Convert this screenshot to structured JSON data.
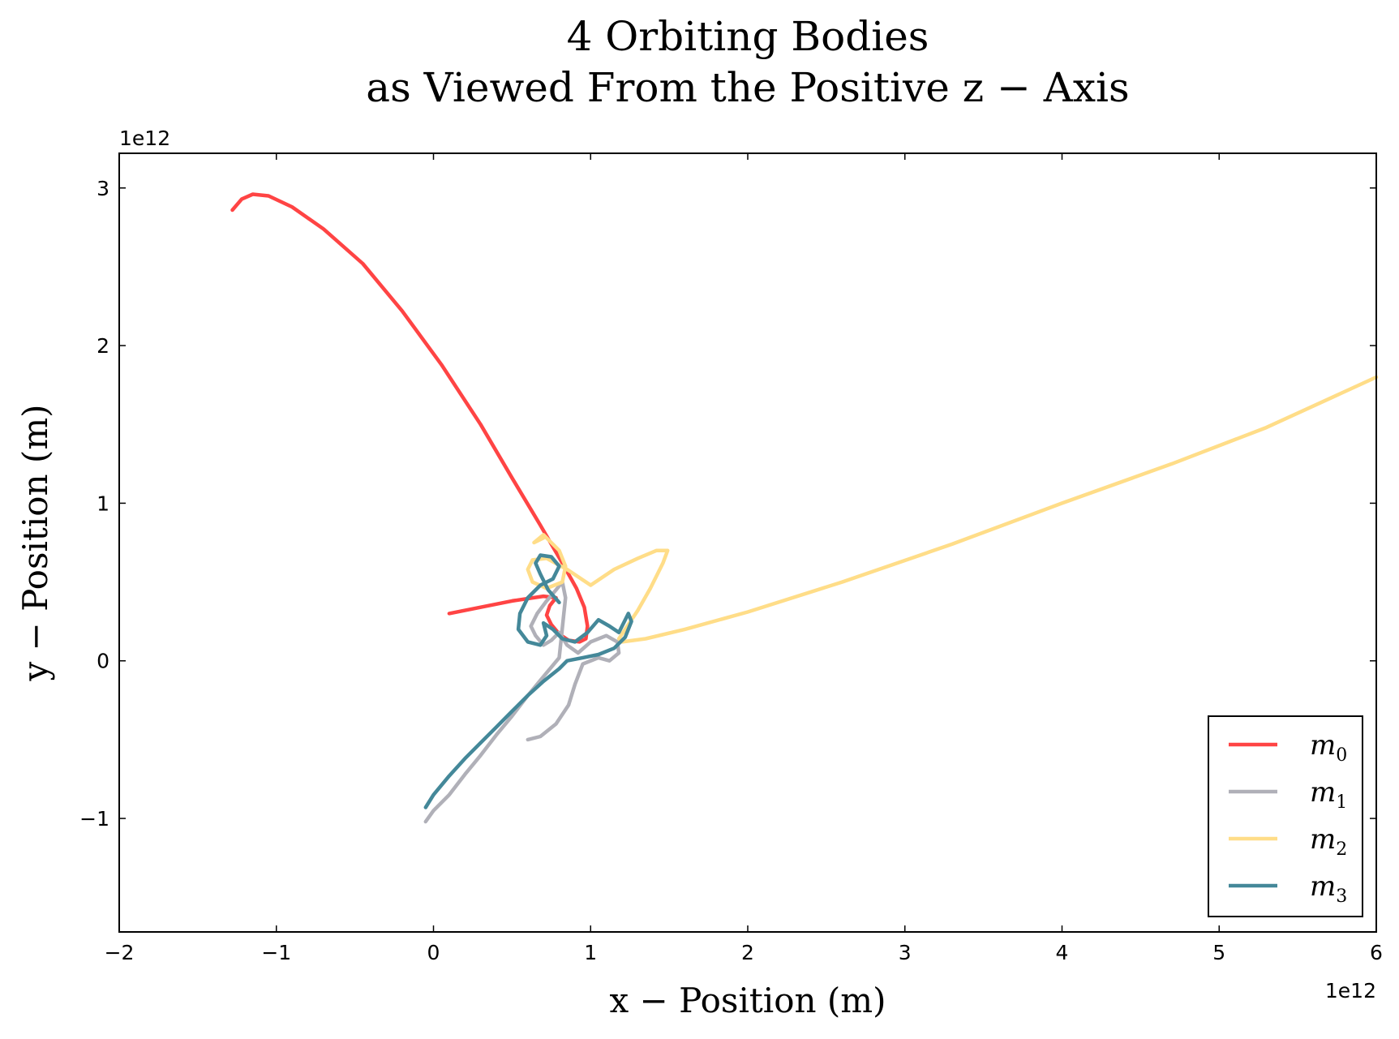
{
  "chart_data": {
    "type": "line",
    "title": [
      "4 Orbiting Bodies",
      "as Viewed From the Positive z − Axis"
    ],
    "xlabel": "x − Position (m)",
    "ylabel": "y − Position (m)",
    "x_offset_label": "1e12",
    "y_offset_label": "1e12",
    "xlim": [
      -2,
      6
    ],
    "ylim": [
      -1.72,
      3.22
    ],
    "xticks": [
      -2,
      -1,
      0,
      1,
      2,
      3,
      4,
      5,
      6
    ],
    "yticks": [
      -1,
      0,
      1,
      2,
      3
    ],
    "xtick_labels": [
      "−2",
      "−1",
      "0",
      "1",
      "2",
      "3",
      "4",
      "5",
      "6"
    ],
    "ytick_labels": [
      "−1",
      "0",
      "1",
      "2",
      "3"
    ],
    "grid": false,
    "legend_position": "bottom-right",
    "series": [
      {
        "name": "m",
        "subscript": "0",
        "color": "#ff4444",
        "x": [
          -1.28,
          -1.22,
          -1.15,
          -1.05,
          -0.9,
          -0.7,
          -0.45,
          -0.2,
          0.05,
          0.3,
          0.5,
          0.68,
          0.82,
          0.91,
          0.96,
          0.98,
          0.97,
          0.93,
          0.86,
          0.8,
          0.75,
          0.72,
          0.74,
          0.78,
          0.7,
          0.5,
          0.3,
          0.1
        ],
        "y": [
          2.86,
          2.93,
          2.96,
          2.95,
          2.88,
          2.74,
          2.52,
          2.22,
          1.88,
          1.5,
          1.16,
          0.86,
          0.62,
          0.46,
          0.34,
          0.22,
          0.14,
          0.12,
          0.13,
          0.17,
          0.23,
          0.29,
          0.35,
          0.4,
          0.41,
          0.38,
          0.34,
          0.3
        ]
      },
      {
        "name": "m",
        "subscript": "1",
        "color": "#b0b0b8",
        "x": [
          0.6,
          0.68,
          0.78,
          0.86,
          0.9,
          0.95,
          1.05,
          1.12,
          1.18,
          1.17,
          1.1,
          1.0,
          0.92,
          0.85,
          0.8,
          0.75,
          0.7,
          0.65,
          0.62,
          0.66,
          0.72,
          0.78,
          0.82,
          0.84,
          0.8,
          0.7,
          0.6,
          0.5,
          0.4,
          0.3,
          0.2,
          0.1,
          0.0,
          -0.05
        ],
        "y": [
          -0.5,
          -0.48,
          -0.4,
          -0.28,
          -0.15,
          -0.02,
          0.02,
          0.0,
          0.05,
          0.12,
          0.16,
          0.12,
          0.05,
          0.1,
          0.18,
          0.13,
          0.1,
          0.16,
          0.22,
          0.3,
          0.38,
          0.45,
          0.5,
          0.4,
          0.02,
          -0.1,
          -0.22,
          -0.35,
          -0.47,
          -0.6,
          -0.72,
          -0.85,
          -0.95,
          -1.02
        ]
      },
      {
        "name": "m",
        "subscript": "2",
        "color": "#ffdd88",
        "x": [
          0.7,
          0.64,
          0.7,
          0.8,
          0.84,
          0.82,
          0.72,
          0.63,
          0.6,
          0.63,
          0.72,
          0.85,
          1.0,
          1.15,
          1.3,
          1.42,
          1.49,
          1.46,
          1.38,
          1.3,
          1.22,
          1.18,
          1.2,
          1.35,
          1.6,
          2.0,
          2.6,
          3.3,
          4.0,
          4.7,
          5.3,
          6.0
        ],
        "y": [
          0.78,
          0.75,
          0.8,
          0.7,
          0.6,
          0.5,
          0.46,
          0.5,
          0.58,
          0.64,
          0.65,
          0.58,
          0.48,
          0.58,
          0.65,
          0.7,
          0.7,
          0.62,
          0.46,
          0.32,
          0.2,
          0.14,
          0.12,
          0.14,
          0.2,
          0.31,
          0.5,
          0.74,
          1.0,
          1.25,
          1.48,
          1.8
        ]
      },
      {
        "name": "m",
        "subscript": "3",
        "color": "#448899",
        "x": [
          0.8,
          0.73,
          0.68,
          0.65,
          0.68,
          0.75,
          0.8,
          0.76,
          0.68,
          0.6,
          0.55,
          0.54,
          0.6,
          0.68,
          0.72,
          0.7,
          0.76,
          0.82,
          0.9,
          0.98,
          1.05,
          1.12,
          1.18,
          1.24,
          1.26,
          1.22,
          1.15,
          1.05,
          0.95,
          0.85,
          0.8,
          0.7,
          0.6,
          0.5,
          0.4,
          0.3,
          0.2,
          0.1,
          0.0,
          -0.05
        ],
        "y": [
          0.37,
          0.45,
          0.55,
          0.62,
          0.67,
          0.66,
          0.6,
          0.52,
          0.48,
          0.4,
          0.3,
          0.2,
          0.12,
          0.1,
          0.16,
          0.24,
          0.2,
          0.14,
          0.12,
          0.18,
          0.26,
          0.22,
          0.18,
          0.3,
          0.25,
          0.15,
          0.08,
          0.04,
          0.02,
          0.0,
          -0.05,
          -0.13,
          -0.22,
          -0.32,
          -0.42,
          -0.52,
          -0.62,
          -0.73,
          -0.85,
          -0.93
        ]
      }
    ]
  }
}
